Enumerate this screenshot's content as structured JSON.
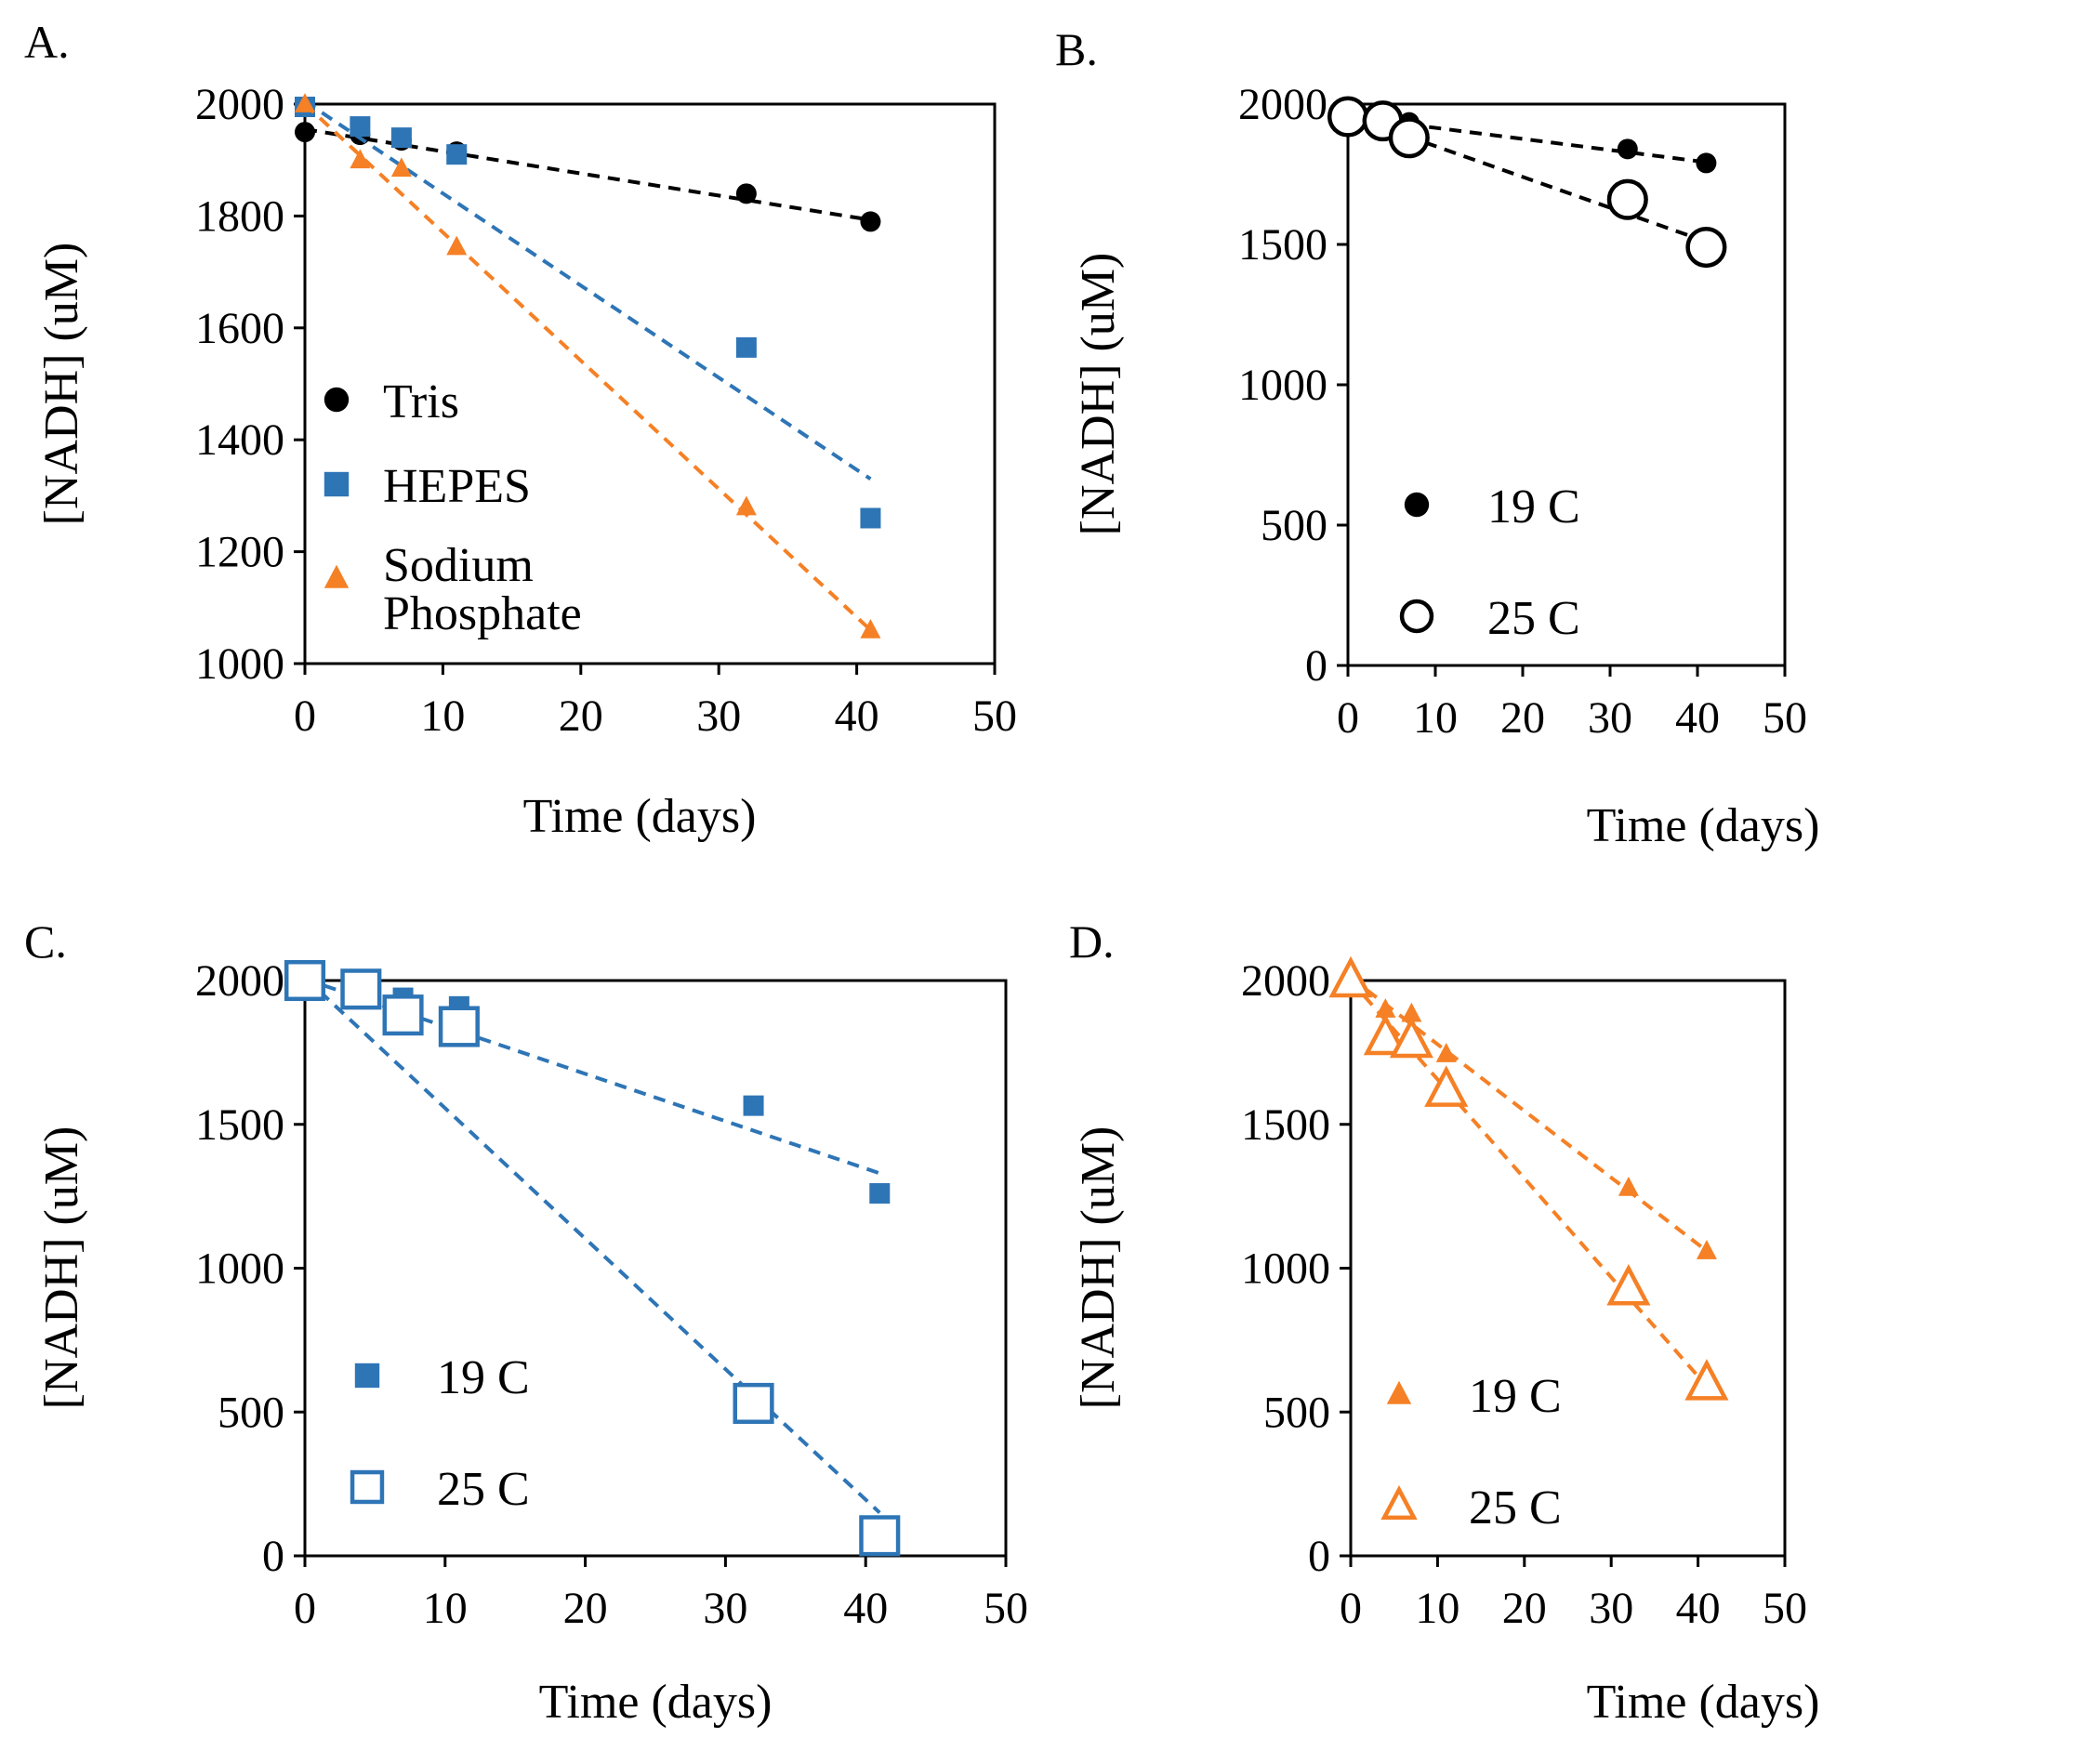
{
  "figure": {
    "colors": {
      "black": "#000000",
      "blue": "#2E75B6",
      "orange": "#F58025"
    }
  },
  "chart_data": [
    {
      "panel": "A.",
      "type": "scatter",
      "xlabel": "Time (days)",
      "ylabel": "[NADH] (uM)",
      "xlim": [
        0,
        50
      ],
      "ylim": [
        1000,
        2000
      ],
      "xticks": [
        0,
        10,
        20,
        30,
        40,
        50
      ],
      "yticks": [
        1000,
        1200,
        1400,
        1600,
        1800,
        2000
      ],
      "legend_position": "left",
      "series": [
        {
          "name": "Tris",
          "color": "#000000",
          "marker": "circle",
          "filled": true,
          "size": 1,
          "x": [
            0,
            4,
            7,
            11,
            32,
            41
          ],
          "y": [
            1950,
            1945,
            1935,
            1915,
            1840,
            1790
          ],
          "trend": [
            [
              0,
              1955
            ],
            [
              41,
              1793
            ]
          ]
        },
        {
          "name": "HEPES",
          "color": "#2E75B6",
          "marker": "square",
          "filled": true,
          "size": 1,
          "x": [
            0,
            4,
            7,
            11,
            32,
            41
          ],
          "y": [
            1995,
            1960,
            1940,
            1910,
            1565,
            1260
          ],
          "trend": [
            [
              0,
              2005
            ],
            [
              41,
              1330
            ]
          ]
        },
        {
          "name": "Sodium Phosphate",
          "color": "#F58025",
          "marker": "triangle",
          "filled": true,
          "size": 1,
          "x": [
            0,
            4,
            7,
            11,
            32,
            41
          ],
          "y": [
            2000,
            1900,
            1885,
            1745,
            1280,
            1060
          ],
          "trend": [
            [
              0,
              2000
            ],
            [
              41,
              1060
            ]
          ]
        }
      ]
    },
    {
      "panel": "B.",
      "type": "scatter",
      "xlabel": "Time (days)",
      "ylabel": "[NADH] (uM)",
      "xlim": [
        0,
        50
      ],
      "ylim": [
        0,
        2000
      ],
      "xticks": [
        0,
        10,
        20,
        30,
        40,
        50
      ],
      "yticks": [
        0,
        500,
        1000,
        1500,
        2000
      ],
      "legend_position": "bottom-left",
      "series": [
        {
          "name": "19 C",
          "color": "#000000",
          "marker": "circle",
          "filled": true,
          "size": 1,
          "x": [
            0,
            4,
            7,
            32,
            41
          ],
          "y": [
            1950,
            1945,
            1935,
            1840,
            1790
          ],
          "trend": [
            [
              0,
              1955
            ],
            [
              41,
              1793
            ]
          ]
        },
        {
          "name": "25 C",
          "color": "#000000",
          "marker": "circle",
          "filled": false,
          "size": 1.8,
          "x": [
            0,
            4,
            7,
            32,
            41
          ],
          "y": [
            1955,
            1940,
            1880,
            1660,
            1490
          ],
          "trend": [
            [
              0,
              1960
            ],
            [
              41,
              1510
            ]
          ]
        }
      ]
    },
    {
      "panel": "C.",
      "type": "scatter",
      "xlabel": "Time (days)",
      "ylabel": "[NADH] (uM)",
      "xlim": [
        0,
        50
      ],
      "ylim": [
        0,
        2000
      ],
      "xticks": [
        0,
        10,
        20,
        30,
        40,
        50
      ],
      "yticks": [
        0,
        500,
        1000,
        1500,
        2000
      ],
      "legend_position": "bottom-left",
      "series": [
        {
          "name": "19 C",
          "color": "#2E75B6",
          "marker": "square",
          "filled": true,
          "size": 1,
          "x": [
            0,
            4,
            7,
            11,
            32,
            41
          ],
          "y": [
            1995,
            1960,
            1940,
            1910,
            1565,
            1260
          ],
          "trend": [
            [
              0,
              2005
            ],
            [
              41,
              1330
            ]
          ]
        },
        {
          "name": "25 C",
          "color": "#2E75B6",
          "marker": "square",
          "filled": false,
          "size": 1.8,
          "x": [
            0,
            4,
            7,
            11,
            32,
            41
          ],
          "y": [
            2000,
            1970,
            1880,
            1840,
            530,
            70
          ],
          "trend": [
            [
              0,
              2010
            ],
            [
              41,
              150
            ]
          ]
        }
      ]
    },
    {
      "panel": "D.",
      "type": "scatter",
      "xlabel": "Time (days)",
      "ylabel": "[NADH] (uM)",
      "xlim": [
        0,
        50
      ],
      "ylim": [
        0,
        2000
      ],
      "xticks": [
        0,
        10,
        20,
        30,
        40,
        50
      ],
      "yticks": [
        0,
        500,
        1000,
        1500,
        2000
      ],
      "legend_position": "bottom-left",
      "series": [
        {
          "name": "19 C",
          "color": "#F58025",
          "marker": "triangle",
          "filled": true,
          "size": 1,
          "x": [
            0,
            4,
            7,
            11,
            32,
            41
          ],
          "y": [
            2000,
            1900,
            1885,
            1745,
            1280,
            1060
          ],
          "trend": [
            [
              0,
              2010
            ],
            [
              41,
              1060
            ]
          ]
        },
        {
          "name": "25 C",
          "color": "#F58025",
          "marker": "triangle",
          "filled": false,
          "size": 1.8,
          "x": [
            0,
            4,
            7,
            11,
            32,
            41
          ],
          "y": [
            2000,
            1800,
            1790,
            1620,
            930,
            600
          ],
          "trend": [
            [
              0,
              2000
            ],
            [
              41,
              590
            ]
          ]
        }
      ]
    }
  ]
}
